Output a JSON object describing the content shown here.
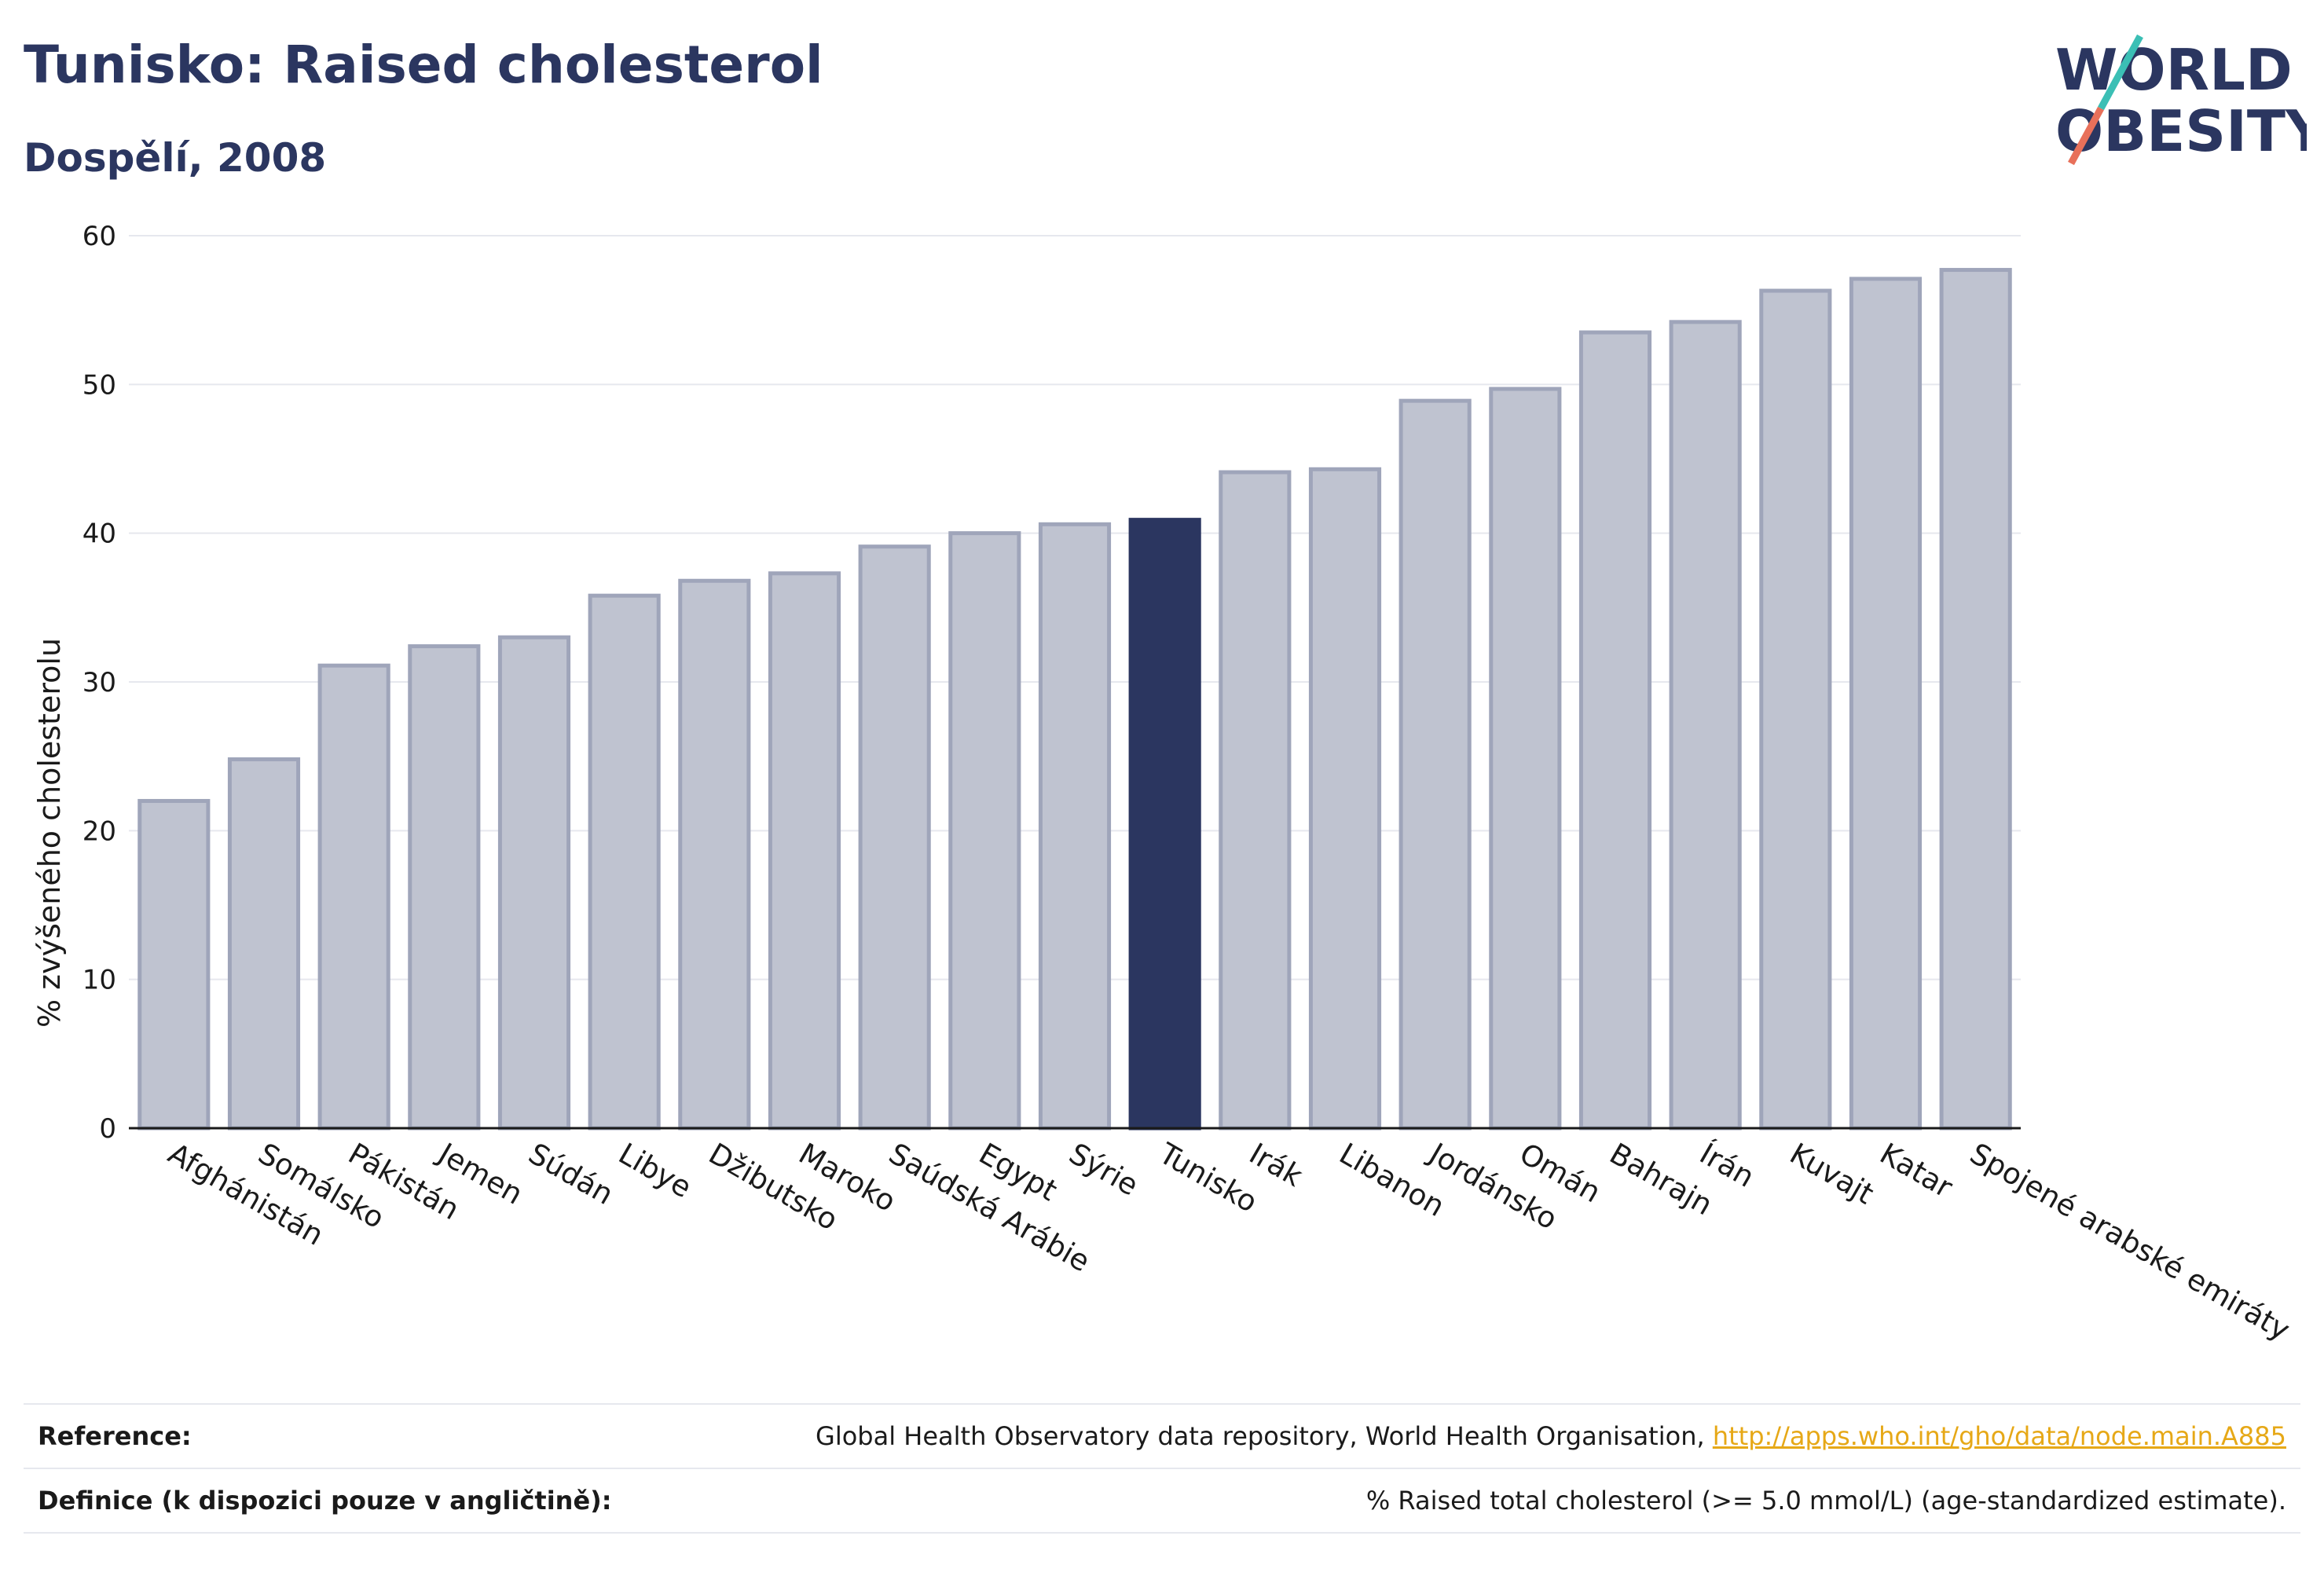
{
  "header": {
    "title": "Tunisko: Raised cholesterol",
    "subtitle": "Dospělí, 2008"
  },
  "logo": {
    "line1": "WORLD",
    "line2": "OBESITY",
    "accent_teal": "#3bbfb5",
    "accent_coral": "#e8705a"
  },
  "chart_data": {
    "type": "bar",
    "ylabel": "% zvýšeného cholesterolu",
    "ylim": [
      0,
      60
    ],
    "yticks": [
      0,
      10,
      20,
      30,
      40,
      50,
      60
    ],
    "grid": true,
    "highlight": "Tunisko",
    "colors": {
      "bar": "#bfc3d0",
      "bar_border": "#9fa5ba",
      "highlight": "#2b3660"
    },
    "categories": [
      "Afghánistán",
      "Somálsko",
      "Pákistán",
      "Jemen",
      "Súdán",
      "Libye",
      "Džibutsko",
      "Maroko",
      "Saúdská Arábie",
      "Egypt",
      "Sýrie",
      "Tunisko",
      "Irák",
      "Libanon",
      "Jordánsko",
      "Omán",
      "Bahrajn",
      "Írán",
      "Kuvajt",
      "Katar",
      "Spojené arabské emiráty"
    ],
    "values": [
      22.0,
      24.8,
      31.1,
      32.4,
      33.0,
      35.8,
      36.8,
      37.3,
      39.1,
      40.0,
      40.6,
      40.9,
      44.1,
      44.3,
      48.9,
      49.7,
      53.5,
      54.2,
      56.3,
      57.1,
      57.7
    ]
  },
  "footer": {
    "reference_label": "Reference:",
    "reference_text": "Global Health Observatory data repository, World Health Organisation, ",
    "reference_link": "http://apps.who.int/gho/data/node.main.A885",
    "definition_label": "Definice (k dispozici pouze v angličtině):",
    "definition_text": "% Raised total cholesterol (>= 5.0 mmol/L) (age-standardized estimate)."
  }
}
